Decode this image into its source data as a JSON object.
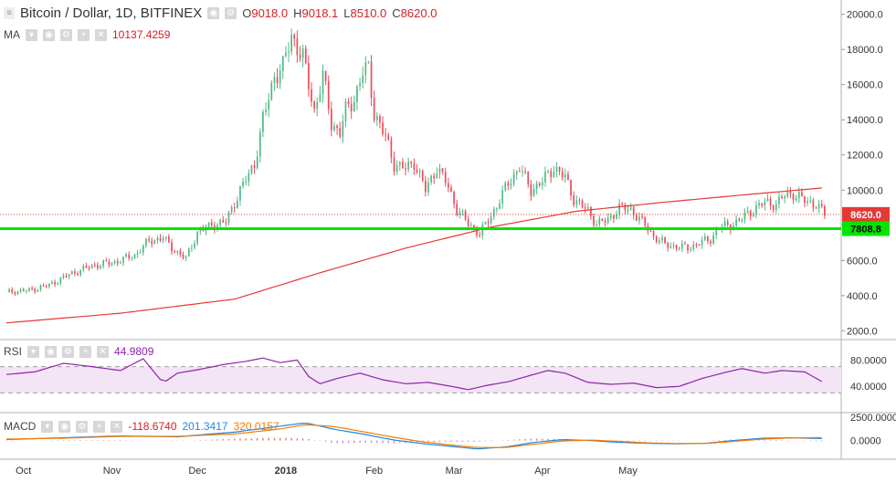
{
  "header": {
    "title": "Bitcoin / Dollar, 1D, BITFINEX",
    "ohlc": {
      "o_label": "O",
      "o": "9018.0",
      "h_label": "H",
      "h": "9018.1",
      "l_label": "L",
      "l": "8510.0",
      "c_label": "C",
      "c": "8620.0"
    },
    "ma_label": "MA",
    "ma_value": "10137.4259"
  },
  "rsi": {
    "label": "RSI",
    "value": "44.9809",
    "axis": [
      "80.0000",
      "40.0000"
    ]
  },
  "macd": {
    "label": "MACD",
    "v1": "-118.6740",
    "v2": "201.3417",
    "v3": "320.0157",
    "axis": [
      "2500.0000",
      "0.0000"
    ]
  },
  "price_axis": [
    "20000.0",
    "18000.0",
    "16000.0",
    "14000.0",
    "12000.0",
    "10000.0",
    "8000.0",
    "6000.0",
    "4000.0",
    "2000.0"
  ],
  "price_tags": {
    "last": "8620.0",
    "level": "7808.8"
  },
  "time_axis": [
    "Oct",
    "Nov",
    "Dec",
    "2018",
    "Feb",
    "Mar",
    "Apr",
    "May"
  ],
  "colors": {
    "up": "#53b987",
    "down": "#eb4d5c",
    "ma": "#e53935",
    "level": "#00e600",
    "rsi": "#8e24aa",
    "rsi_band": "#f3e5f5",
    "macd": "#1e88e5",
    "signal": "#f57c00"
  },
  "chart_data": {
    "type": "candlestick",
    "symbol": "Bitcoin / Dollar",
    "interval": "1D",
    "exchange": "BITFINEX",
    "ylim": [
      1500,
      20500
    ],
    "last_close": 8620.0,
    "horizontal_level": 7808.8,
    "ma_last": 10137.4259,
    "close_path": [
      [
        0,
        4200
      ],
      [
        8,
        4300
      ],
      [
        15,
        4600
      ],
      [
        22,
        5200
      ],
      [
        30,
        5700
      ],
      [
        38,
        5900
      ],
      [
        45,
        6300
      ],
      [
        50,
        7100
      ],
      [
        55,
        7300
      ],
      [
        58,
        6700
      ],
      [
        63,
        6100
      ],
      [
        67,
        7600
      ],
      [
        72,
        8000
      ],
      [
        77,
        8200
      ],
      [
        82,
        10000
      ],
      [
        87,
        11500
      ],
      [
        90,
        14000
      ],
      [
        94,
        16500
      ],
      [
        97,
        17000
      ],
      [
        100,
        18800
      ],
      [
        104,
        17500
      ],
      [
        108,
        14500
      ],
      [
        111,
        16500
      ],
      [
        114,
        13800
      ],
      [
        117,
        13300
      ],
      [
        119,
        14500
      ],
      [
        122,
        15200
      ],
      [
        125,
        16700
      ],
      [
        127,
        16900
      ],
      [
        129,
        14400
      ],
      [
        133,
        13000
      ],
      [
        136,
        11500
      ],
      [
        140,
        11200
      ],
      [
        143,
        11600
      ],
      [
        147,
        10000
      ],
      [
        151,
        11300
      ],
      [
        155,
        10200
      ],
      [
        158,
        8900
      ],
      [
        162,
        8100
      ],
      [
        166,
        7500
      ],
      [
        169,
        8300
      ],
      [
        172,
        9100
      ],
      [
        176,
        10400
      ],
      [
        180,
        11300
      ],
      [
        184,
        10000
      ],
      [
        188,
        10500
      ],
      [
        192,
        11300
      ],
      [
        196,
        10700
      ],
      [
        199,
        9500
      ],
      [
        204,
        8800
      ],
      [
        207,
        8100
      ],
      [
        211,
        8300
      ],
      [
        215,
        9000
      ],
      [
        219,
        8900
      ],
      [
        223,
        8200
      ],
      [
        227,
        7400
      ],
      [
        231,
        6900
      ],
      [
        235,
        6800
      ],
      [
        239,
        6700
      ],
      [
        243,
        7000
      ],
      [
        247,
        7200
      ],
      [
        250,
        7900
      ],
      [
        254,
        8000
      ],
      [
        258,
        8400
      ],
      [
        262,
        8900
      ],
      [
        266,
        9300
      ],
      [
        270,
        9200
      ],
      [
        273,
        9700
      ],
      [
        276,
        9800
      ],
      [
        280,
        9400
      ],
      [
        284,
        9200
      ],
      [
        287,
        8620
      ]
    ],
    "ma_path": [
      [
        0,
        2450
      ],
      [
        40,
        3000
      ],
      [
        80,
        3800
      ],
      [
        110,
        5300
      ],
      [
        140,
        6700
      ],
      [
        170,
        7900
      ],
      [
        200,
        8800
      ],
      [
        230,
        9300
      ],
      [
        260,
        9750
      ],
      [
        287,
        10137
      ]
    ],
    "rsi_path": [
      [
        0,
        58
      ],
      [
        10,
        62
      ],
      [
        20,
        75
      ],
      [
        30,
        70
      ],
      [
        40,
        64
      ],
      [
        48,
        82
      ],
      [
        55,
        45
      ],
      [
        60,
        60
      ],
      [
        68,
        66
      ],
      [
        76,
        73
      ],
      [
        84,
        78
      ],
      [
        90,
        83
      ],
      [
        96,
        76
      ],
      [
        102,
        80
      ],
      [
        106,
        55
      ],
      [
        110,
        44
      ],
      [
        116,
        52
      ],
      [
        124,
        60
      ],
      [
        132,
        50
      ],
      [
        140,
        44
      ],
      [
        148,
        46
      ],
      [
        156,
        40
      ],
      [
        162,
        35
      ],
      [
        168,
        41
      ],
      [
        176,
        47
      ],
      [
        184,
        57
      ],
      [
        190,
        64
      ],
      [
        196,
        60
      ],
      [
        204,
        46
      ],
      [
        212,
        43
      ],
      [
        220,
        45
      ],
      [
        228,
        38
      ],
      [
        236,
        40
      ],
      [
        244,
        52
      ],
      [
        252,
        61
      ],
      [
        258,
        67
      ],
      [
        266,
        60
      ],
      [
        272,
        64
      ],
      [
        280,
        62
      ],
      [
        287,
        44.98
      ]
    ],
    "macd_path": [
      [
        0,
        100
      ],
      [
        20,
        300
      ],
      [
        40,
        500
      ],
      [
        60,
        400
      ],
      [
        80,
        900
      ],
      [
        95,
        1500
      ],
      [
        105,
        1900
      ],
      [
        115,
        1200
      ],
      [
        125,
        700
      ],
      [
        135,
        100
      ],
      [
        145,
        -300
      ],
      [
        155,
        -600
      ],
      [
        165,
        -900
      ],
      [
        175,
        -700
      ],
      [
        185,
        -200
      ],
      [
        195,
        100
      ],
      [
        205,
        0
      ],
      [
        215,
        -200
      ],
      [
        225,
        -300
      ],
      [
        235,
        -350
      ],
      [
        245,
        -300
      ],
      [
        255,
        0
      ],
      [
        265,
        250
      ],
      [
        275,
        300
      ],
      [
        287,
        201
      ]
    ],
    "signal_path": [
      [
        0,
        150
      ],
      [
        20,
        250
      ],
      [
        40,
        450
      ],
      [
        60,
        450
      ],
      [
        80,
        700
      ],
      [
        95,
        1200
      ],
      [
        105,
        1700
      ],
      [
        115,
        1500
      ],
      [
        125,
        950
      ],
      [
        135,
        400
      ],
      [
        145,
        -100
      ],
      [
        155,
        -450
      ],
      [
        165,
        -750
      ],
      [
        175,
        -750
      ],
      [
        185,
        -400
      ],
      [
        195,
        -50
      ],
      [
        205,
        50
      ],
      [
        215,
        -100
      ],
      [
        225,
        -250
      ],
      [
        235,
        -320
      ],
      [
        245,
        -320
      ],
      [
        255,
        -100
      ],
      [
        265,
        150
      ],
      [
        275,
        280
      ],
      [
        287,
        320
      ]
    ]
  }
}
